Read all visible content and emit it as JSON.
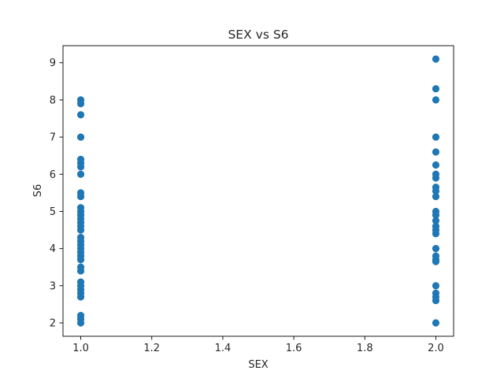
{
  "chart_data": {
    "type": "scatter",
    "title": "SEX vs S6",
    "xlabel": "SEX",
    "ylabel": "S6",
    "xlim": [
      0.95,
      2.05
    ],
    "ylim": [
      1.64,
      9.46
    ],
    "xticks": [
      "1.0",
      "1.2",
      "1.4",
      "1.6",
      "1.8",
      "2.0"
    ],
    "yticks": [
      "2",
      "3",
      "4",
      "5",
      "6",
      "7",
      "8",
      "9"
    ],
    "grid": false,
    "marker_color": "#1f77b4",
    "series": [
      {
        "points": [
          {
            "x": 1,
            "y": 8.0
          },
          {
            "x": 1,
            "y": 7.9
          },
          {
            "x": 1,
            "y": 7.6
          },
          {
            "x": 1,
            "y": 7.0
          },
          {
            "x": 1,
            "y": 6.4
          },
          {
            "x": 1,
            "y": 6.3
          },
          {
            "x": 1,
            "y": 6.2
          },
          {
            "x": 1,
            "y": 6.0
          },
          {
            "x": 1,
            "y": 5.5
          },
          {
            "x": 1,
            "y": 5.4
          },
          {
            "x": 1,
            "y": 5.1
          },
          {
            "x": 1,
            "y": 5.0
          },
          {
            "x": 1,
            "y": 4.9
          },
          {
            "x": 1,
            "y": 4.8
          },
          {
            "x": 1,
            "y": 4.7
          },
          {
            "x": 1,
            "y": 4.6
          },
          {
            "x": 1,
            "y": 4.5
          },
          {
            "x": 1,
            "y": 4.3
          },
          {
            "x": 1,
            "y": 4.2
          },
          {
            "x": 1,
            "y": 4.1
          },
          {
            "x": 1,
            "y": 4.0
          },
          {
            "x": 1,
            "y": 3.9
          },
          {
            "x": 1,
            "y": 3.8
          },
          {
            "x": 1,
            "y": 3.7
          },
          {
            "x": 1,
            "y": 3.5
          },
          {
            "x": 1,
            "y": 3.4
          },
          {
            "x": 1,
            "y": 3.1
          },
          {
            "x": 1,
            "y": 3.0
          },
          {
            "x": 1,
            "y": 2.9
          },
          {
            "x": 1,
            "y": 2.8
          },
          {
            "x": 1,
            "y": 2.7
          },
          {
            "x": 1,
            "y": 2.2
          },
          {
            "x": 1,
            "y": 2.1
          },
          {
            "x": 1,
            "y": 2.0
          },
          {
            "x": 2,
            "y": 9.1
          },
          {
            "x": 2,
            "y": 8.3
          },
          {
            "x": 2,
            "y": 8.0
          },
          {
            "x": 2,
            "y": 7.0
          },
          {
            "x": 2,
            "y": 6.6
          },
          {
            "x": 2,
            "y": 6.25
          },
          {
            "x": 2,
            "y": 6.0
          },
          {
            "x": 2,
            "y": 5.9
          },
          {
            "x": 2,
            "y": 5.65
          },
          {
            "x": 2,
            "y": 5.55
          },
          {
            "x": 2,
            "y": 5.4
          },
          {
            "x": 2,
            "y": 5.0
          },
          {
            "x": 2,
            "y": 4.9
          },
          {
            "x": 2,
            "y": 4.75
          },
          {
            "x": 2,
            "y": 4.6
          },
          {
            "x": 2,
            "y": 4.5
          },
          {
            "x": 2,
            "y": 4.4
          },
          {
            "x": 2,
            "y": 4.0
          },
          {
            "x": 2,
            "y": 3.8
          },
          {
            "x": 2,
            "y": 3.7
          },
          {
            "x": 2,
            "y": 3.65
          },
          {
            "x": 2,
            "y": 3.0
          },
          {
            "x": 2,
            "y": 2.8
          },
          {
            "x": 2,
            "y": 2.7
          },
          {
            "x": 2,
            "y": 2.6
          },
          {
            "x": 2,
            "y": 2.0
          }
        ]
      }
    ]
  }
}
